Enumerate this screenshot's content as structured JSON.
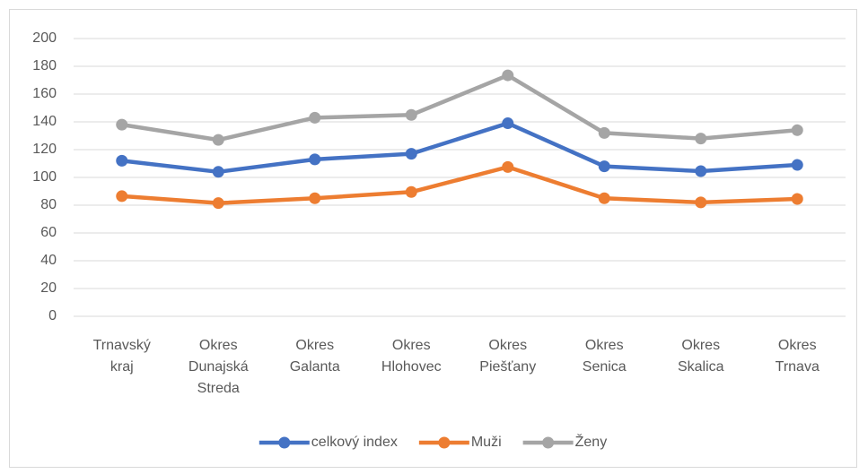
{
  "chart_data": {
    "type": "line",
    "categories": [
      "Trnavský kraj",
      "Okres Dunajská Streda",
      "Okres Galanta",
      "Okres Hlohovec",
      "Okres Piešťany",
      "Okres Senica",
      "Okres Skalica",
      "Okres Trnava"
    ],
    "series": [
      {
        "name": "celkový index",
        "color": "#4472c4",
        "values": [
          112,
          104,
          113,
          117,
          139,
          108,
          104.5,
          109
        ]
      },
      {
        "name": "Muži",
        "color": "#ed7d31",
        "values": [
          86.5,
          81.5,
          85,
          89.5,
          107.5,
          85,
          82,
          84.5
        ]
      },
      {
        "name": "Ženy",
        "color": "#a5a5a5",
        "values": [
          138,
          127,
          143,
          145,
          173.5,
          132,
          128,
          134
        ]
      }
    ],
    "ylim": [
      0,
      200
    ],
    "yticks": [
      0,
      20,
      40,
      60,
      80,
      100,
      120,
      140,
      160,
      180,
      200
    ],
    "grid": true,
    "legend": "bottom"
  }
}
